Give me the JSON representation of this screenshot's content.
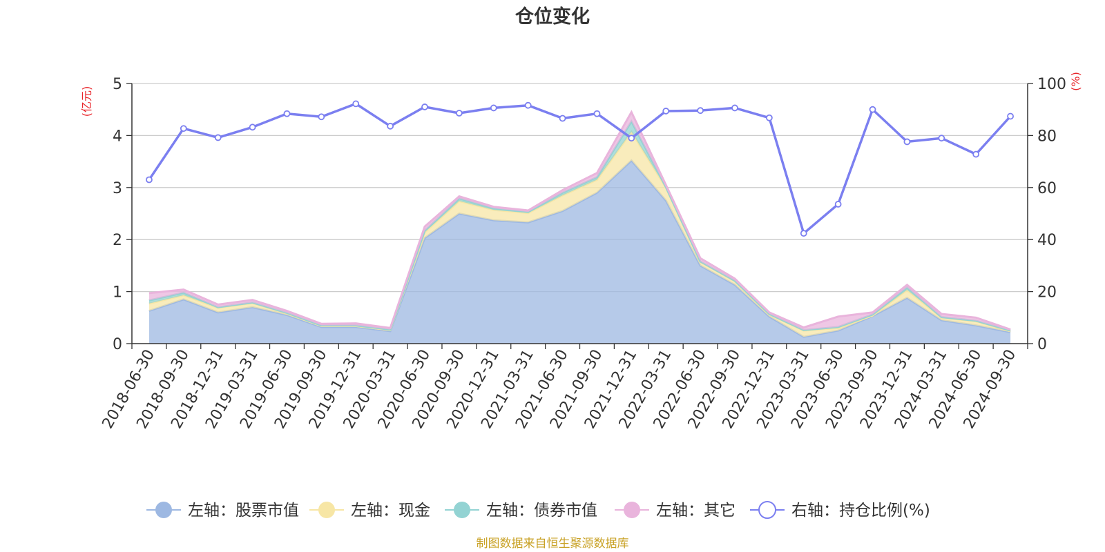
{
  "chart_data": {
    "type": "area",
    "title": "仓位变化",
    "left_axis_label": "(亿元)",
    "right_axis_label": "(%)",
    "source_note": "制图数据来自恒生聚源数据库",
    "left_ylim": [
      0,
      5
    ],
    "left_yticks": [
      0,
      1,
      2,
      3,
      4,
      5
    ],
    "right_ylim": [
      0,
      100
    ],
    "right_yticks": [
      0,
      20,
      40,
      60,
      80,
      100
    ],
    "grid": true,
    "legend_position": "bottom",
    "categories": [
      "2018-06-30",
      "2018-09-30",
      "2018-12-31",
      "2019-03-31",
      "2019-06-30",
      "2019-09-30",
      "2019-12-31",
      "2020-03-31",
      "2020-06-30",
      "2020-09-30",
      "2020-12-31",
      "2021-03-31",
      "2021-06-30",
      "2021-09-30",
      "2021-12-31",
      "2022-03-31",
      "2022-06-30",
      "2022-09-30",
      "2022-12-31",
      "2023-03-31",
      "2023-06-30",
      "2023-09-30",
      "2023-12-31",
      "2024-03-31",
      "2024-06-30",
      "2024-09-30"
    ],
    "series": [
      {
        "name": "左轴：股票市值",
        "axis": "left",
        "stack": true,
        "color": "#9db8e2",
        "values": [
          0.63,
          0.85,
          0.6,
          0.7,
          0.55,
          0.32,
          0.32,
          0.24,
          2.03,
          2.5,
          2.37,
          2.33,
          2.55,
          2.9,
          3.52,
          2.75,
          1.5,
          1.13,
          0.52,
          0.13,
          0.25,
          0.53,
          0.88,
          0.45,
          0.35,
          0.22
        ]
      },
      {
        "name": "左轴：现金",
        "axis": "left",
        "stack": true,
        "color": "#f7e6a5",
        "values": [
          0.14,
          0.08,
          0.09,
          0.08,
          0.03,
          0.02,
          0.02,
          0.02,
          0.11,
          0.24,
          0.2,
          0.18,
          0.3,
          0.25,
          0.55,
          0.25,
          0.07,
          0.07,
          0.04,
          0.12,
          0.05,
          0.01,
          0.15,
          0.05,
          0.08,
          0.02
        ]
      },
      {
        "name": "左轴：债券市值",
        "axis": "left",
        "stack": true,
        "color": "#93d3d3",
        "values": [
          0.06,
          0.05,
          0.01,
          0.01,
          0.01,
          0.01,
          0.01,
          0.01,
          0.03,
          0.05,
          0.03,
          0.02,
          0.05,
          0.05,
          0.2,
          0.01,
          0.01,
          0.01,
          0.01,
          0.01,
          0.02,
          0.02,
          0.05,
          0.01,
          0.01,
          0.01
        ]
      },
      {
        "name": "左轴：其它",
        "axis": "left",
        "stack": true,
        "color": "#e9b4dc",
        "values": [
          0.14,
          0.06,
          0.05,
          0.05,
          0.04,
          0.03,
          0.04,
          0.03,
          0.08,
          0.04,
          0.03,
          0.03,
          0.05,
          0.08,
          0.18,
          0.04,
          0.06,
          0.04,
          0.03,
          0.05,
          0.2,
          0.04,
          0.05,
          0.06,
          0.06,
          0.02
        ]
      },
      {
        "name": "右轴：持仓比例(%)",
        "axis": "right",
        "type": "line",
        "color": "#7b7ff0",
        "values": [
          63.0,
          82.7,
          79.2,
          83.2,
          88.4,
          87.2,
          92.2,
          83.6,
          91.0,
          88.6,
          90.6,
          91.6,
          86.6,
          88.4,
          79.0,
          89.4,
          89.6,
          90.6,
          86.8,
          42.4,
          53.6,
          90.0,
          77.6,
          79.0,
          72.8,
          87.4
        ]
      }
    ]
  }
}
